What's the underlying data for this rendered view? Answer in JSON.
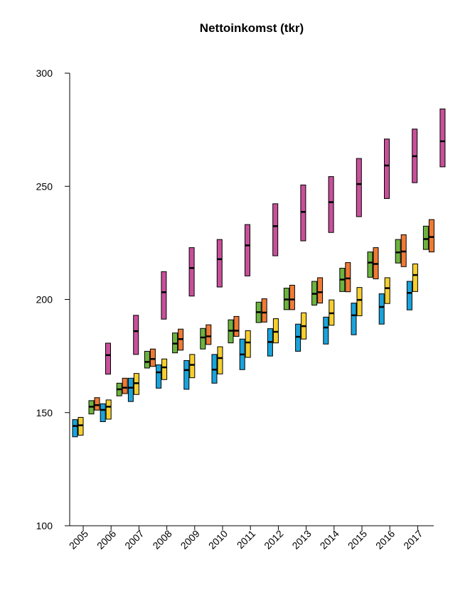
{
  "chart_data": {
    "type": "box",
    "title": "Nettoinkomst (tkr)",
    "xlabel": "",
    "ylabel": "",
    "ylim": [
      100,
      300
    ],
    "yticks": [
      100,
      150,
      200,
      250,
      300
    ],
    "categories": [
      "2005",
      "2006",
      "2007",
      "2008",
      "2009",
      "2010",
      "2011",
      "2012",
      "2013",
      "2014",
      "2015",
      "2016",
      "2017"
    ],
    "series_colors": [
      "#1aa3db",
      "#f6cf2f",
      "#6cb33f",
      "#ef7a35",
      "#c8509a"
    ],
    "boxes": [
      {
        "year": "2005",
        "color": "#1aa3db",
        "low": 139.3,
        "median": 144.1,
        "high": 146.9
      },
      {
        "year": "2005",
        "color": "#f6cf2f",
        "low": 140.0,
        "median": 144.4,
        "high": 147.9
      },
      {
        "year": "2005",
        "color": "#6cb33f",
        "low": 149.4,
        "median": 152.6,
        "high": 155.3
      },
      {
        "year": "2005",
        "color": "#ef7a35",
        "low": 151.1,
        "median": 153.3,
        "high": 156.6
      },
      {
        "year": "2005",
        "color": "#c8509a",
        "low": 167.0,
        "median": 175.4,
        "high": 180.7
      },
      {
        "year": "2006",
        "color": "#1aa3db",
        "low": 146.0,
        "median": 151.2,
        "high": 153.9
      },
      {
        "year": "2006",
        "color": "#f6cf2f",
        "low": 147.1,
        "median": 152.6,
        "high": 155.6
      },
      {
        "year": "2006",
        "color": "#6cb33f",
        "low": 157.4,
        "median": 160.3,
        "high": 163.0
      },
      {
        "year": "2006",
        "color": "#ef7a35",
        "low": 158.4,
        "median": 161.0,
        "high": 165.2
      },
      {
        "year": "2006",
        "color": "#c8509a",
        "low": 175.7,
        "median": 186.0,
        "high": 193.0
      },
      {
        "year": "2007",
        "color": "#1aa3db",
        "low": 154.9,
        "median": 161.0,
        "high": 165.2
      },
      {
        "year": "2007",
        "color": "#f6cf2f",
        "low": 158.0,
        "median": 163.0,
        "high": 167.3
      },
      {
        "year": "2007",
        "color": "#6cb33f",
        "low": 169.7,
        "median": 172.4,
        "high": 177.1
      },
      {
        "year": "2007",
        "color": "#ef7a35",
        "low": 170.4,
        "median": 173.7,
        "high": 178.1
      },
      {
        "year": "2007",
        "color": "#c8509a",
        "low": 191.3,
        "median": 203.2,
        "high": 212.3
      },
      {
        "year": "2008",
        "color": "#1aa3db",
        "low": 160.8,
        "median": 167.8,
        "high": 171.1
      },
      {
        "year": "2008",
        "color": "#f6cf2f",
        "low": 164.6,
        "median": 170.0,
        "high": 173.7
      },
      {
        "year": "2008",
        "color": "#6cb33f",
        "low": 176.4,
        "median": 180.5,
        "high": 185.2
      },
      {
        "year": "2008",
        "color": "#ef7a35",
        "low": 177.6,
        "median": 182.5,
        "high": 186.9
      },
      {
        "year": "2008",
        "color": "#c8509a",
        "low": 201.5,
        "median": 213.9,
        "high": 222.9
      },
      {
        "year": "2009",
        "color": "#1aa3db",
        "low": 160.3,
        "median": 168.8,
        "high": 173.0
      },
      {
        "year": "2009",
        "color": "#f6cf2f",
        "low": 165.4,
        "median": 171.1,
        "high": 175.7
      },
      {
        "year": "2009",
        "color": "#6cb33f",
        "low": 178.1,
        "median": 183.2,
        "high": 187.2
      },
      {
        "year": "2009",
        "color": "#ef7a35",
        "low": 180.1,
        "median": 183.7,
        "high": 188.8
      },
      {
        "year": "2009",
        "color": "#c8509a",
        "low": 205.5,
        "median": 217.8,
        "high": 226.5
      },
      {
        "year": "2010",
        "color": "#1aa3db",
        "low": 163.0,
        "median": 169.0,
        "high": 175.7
      },
      {
        "year": "2010",
        "color": "#f6cf2f",
        "low": 167.1,
        "median": 174.1,
        "high": 179.1
      },
      {
        "year": "2010",
        "color": "#6cb33f",
        "low": 180.8,
        "median": 186.2,
        "high": 191.0
      },
      {
        "year": "2010",
        "color": "#ef7a35",
        "low": 183.7,
        "median": 186.2,
        "high": 192.5
      },
      {
        "year": "2010",
        "color": "#c8509a",
        "low": 210.4,
        "median": 223.9,
        "high": 233.1
      },
      {
        "year": "2011",
        "color": "#1aa3db",
        "low": 169.0,
        "median": 175.7,
        "high": 182.5
      },
      {
        "year": "2011",
        "color": "#f6cf2f",
        "low": 174.4,
        "median": 181.0,
        "high": 186.2
      },
      {
        "year": "2011",
        "color": "#6cb33f",
        "low": 189.8,
        "median": 194.4,
        "high": 198.8
      },
      {
        "year": "2011",
        "color": "#ef7a35",
        "low": 190.0,
        "median": 194.2,
        "high": 200.3
      },
      {
        "year": "2011",
        "color": "#c8509a",
        "low": 219.3,
        "median": 232.4,
        "high": 242.3
      },
      {
        "year": "2012",
        "color": "#1aa3db",
        "low": 175.0,
        "median": 181.2,
        "high": 187.1
      },
      {
        "year": "2012",
        "color": "#f6cf2f",
        "low": 180.8,
        "median": 185.7,
        "high": 191.5
      },
      {
        "year": "2012",
        "color": "#6cb33f",
        "low": 195.5,
        "median": 200.0,
        "high": 205.0
      },
      {
        "year": "2012",
        "color": "#ef7a35",
        "low": 195.5,
        "median": 200.0,
        "high": 206.3
      },
      {
        "year": "2012",
        "color": "#c8509a",
        "low": 225.9,
        "median": 238.7,
        "high": 250.6
      },
      {
        "year": "2013",
        "color": "#1aa3db",
        "low": 177.1,
        "median": 183.5,
        "high": 189.1
      },
      {
        "year": "2013",
        "color": "#f6cf2f",
        "low": 182.5,
        "median": 188.2,
        "high": 194.1
      },
      {
        "year": "2013",
        "color": "#6cb33f",
        "low": 197.5,
        "median": 202.5,
        "high": 208.0
      },
      {
        "year": "2013",
        "color": "#ef7a35",
        "low": 198.4,
        "median": 203.2,
        "high": 209.6
      },
      {
        "year": "2013",
        "color": "#c8509a",
        "low": 229.6,
        "median": 243.0,
        "high": 254.3
      },
      {
        "year": "2014",
        "color": "#1aa3db",
        "low": 180.3,
        "median": 187.6,
        "high": 192.2
      },
      {
        "year": "2014",
        "color": "#f6cf2f",
        "low": 188.6,
        "median": 193.9,
        "high": 199.8
      },
      {
        "year": "2014",
        "color": "#6cb33f",
        "low": 203.5,
        "median": 208.8,
        "high": 213.8
      },
      {
        "year": "2014",
        "color": "#ef7a35",
        "low": 203.4,
        "median": 209.3,
        "high": 216.3
      },
      {
        "year": "2014",
        "color": "#c8509a",
        "low": 236.6,
        "median": 251.0,
        "high": 262.3
      },
      {
        "year": "2015",
        "color": "#1aa3db",
        "low": 184.4,
        "median": 193.0,
        "high": 198.4
      },
      {
        "year": "2015",
        "color": "#f6cf2f",
        "low": 192.8,
        "median": 199.8,
        "high": 205.3
      },
      {
        "year": "2015",
        "color": "#6cb33f",
        "low": 209.8,
        "median": 216.3,
        "high": 221.0
      },
      {
        "year": "2015",
        "color": "#ef7a35",
        "low": 209.1,
        "median": 215.7,
        "high": 222.9
      },
      {
        "year": "2015",
        "color": "#c8509a",
        "low": 244.6,
        "median": 259.2,
        "high": 270.9
      },
      {
        "year": "2016",
        "color": "#1aa3db",
        "low": 189.1,
        "median": 196.7,
        "high": 202.5
      },
      {
        "year": "2016",
        "color": "#f6cf2f",
        "low": 198.2,
        "median": 205.0,
        "high": 209.6
      },
      {
        "year": "2016",
        "color": "#6cb33f",
        "low": 216.1,
        "median": 220.8,
        "high": 226.5
      },
      {
        "year": "2016",
        "color": "#ef7a35",
        "low": 214.5,
        "median": 221.2,
        "high": 228.6
      },
      {
        "year": "2016",
        "color": "#c8509a",
        "low": 251.6,
        "median": 263.3,
        "high": 275.3
      },
      {
        "year": "2017",
        "color": "#1aa3db",
        "low": 195.4,
        "median": 202.9,
        "high": 208.0
      },
      {
        "year": "2017",
        "color": "#f6cf2f",
        "low": 203.5,
        "median": 210.8,
        "high": 215.7
      },
      {
        "year": "2017",
        "color": "#6cb33f",
        "low": 222.1,
        "median": 226.7,
        "high": 232.4
      },
      {
        "year": "2017",
        "color": "#ef7a35",
        "low": 221.0,
        "median": 227.6,
        "high": 235.3
      },
      {
        "year": "2017",
        "color": "#c8509a",
        "low": 258.6,
        "median": 269.9,
        "high": 284.2
      }
    ]
  }
}
